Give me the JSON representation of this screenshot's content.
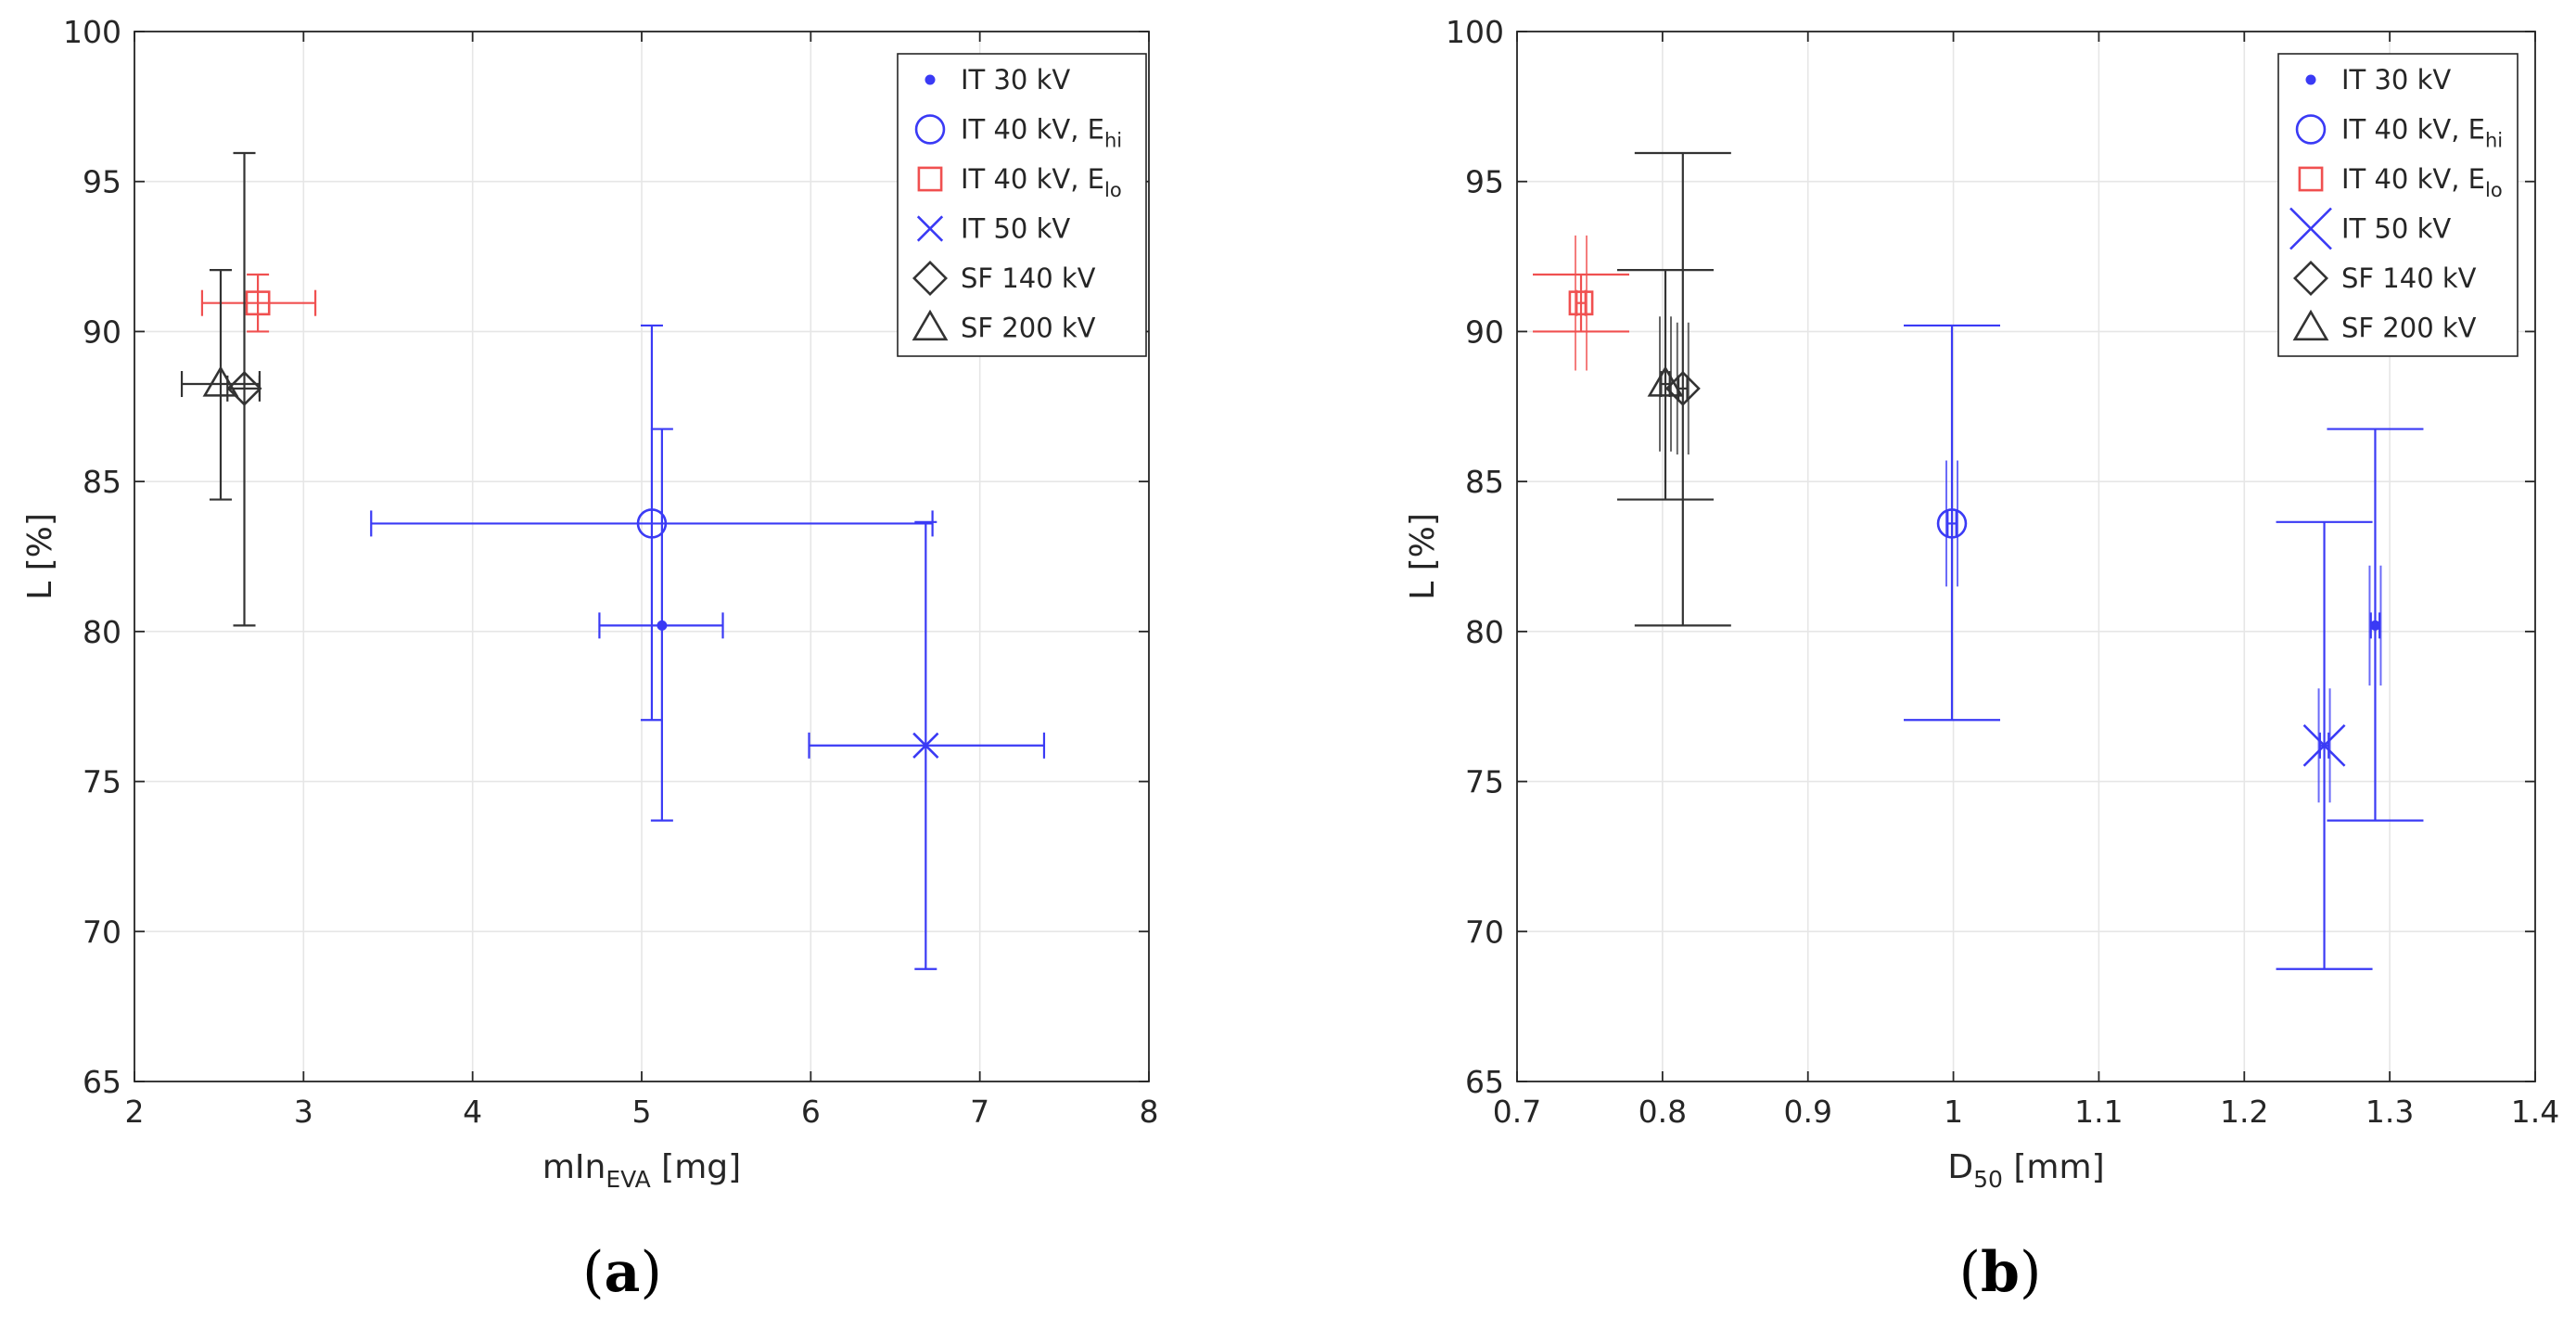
{
  "colors": {
    "blue": "#3a3af5",
    "red": "#f05050",
    "black": "#333333",
    "grid": "#e6e6e6",
    "axis": "#262626"
  },
  "chart_data": [
    {
      "panel": "a",
      "caption_open": "(",
      "caption_letter": "a",
      "caption_close": ")",
      "type": "scatter",
      "xlabel": {
        "base": "mIn",
        "sub": "EVA",
        "unit": " [mg]"
      },
      "ylabel": "L [%]",
      "xlim": [
        2,
        8
      ],
      "ylim": [
        65,
        100
      ],
      "xticks": [
        2,
        3,
        4,
        5,
        6,
        7,
        8
      ],
      "xtick_labels": [
        "2",
        "3",
        "4",
        "5",
        "6",
        "7",
        "8"
      ],
      "yticks": [
        65,
        70,
        75,
        80,
        85,
        90,
        95,
        100
      ],
      "ytick_labels": [
        "65",
        "70",
        "75",
        "80",
        "85",
        "90",
        "95",
        "100"
      ],
      "grid": true,
      "legend_position": "top-right",
      "series": [
        {
          "name": "IT 30 kV",
          "marker": "dot",
          "color": "blue",
          "x": 5.12,
          "y": 80.2,
          "xerr": [
            4.75,
            5.48
          ],
          "yerr": [
            73.7,
            86.75
          ]
        },
        {
          "name": "IT 40 kV, E",
          "name_sub": "hi",
          "marker": "circle",
          "color": "blue",
          "x": 5.06,
          "y": 83.6,
          "xerr": [
            3.4,
            6.72
          ],
          "yerr": [
            77.05,
            90.2
          ]
        },
        {
          "name": "IT 40 kV, E",
          "name_sub": "lo",
          "marker": "square",
          "color": "red",
          "x": 2.73,
          "y": 90.95,
          "xerr": [
            2.4,
            3.07
          ],
          "yerr": [
            90.0,
            91.9
          ]
        },
        {
          "name": "IT 50 kV",
          "marker": "cross",
          "color": "blue",
          "x": 6.68,
          "y": 76.2,
          "xerr": [
            5.99,
            7.38
          ],
          "yerr": [
            68.75,
            83.65
          ]
        },
        {
          "name": "SF 140 kV",
          "marker": "diamond",
          "color": "black",
          "x": 2.65,
          "y": 88.1,
          "xerr": [
            2.55,
            2.74
          ],
          "yerr": [
            80.2,
            95.95
          ]
        },
        {
          "name": "SF 200 kV",
          "marker": "triangle",
          "color": "black",
          "x": 2.51,
          "y": 88.25,
          "xerr": [
            2.28,
            2.74
          ],
          "yerr": [
            84.4,
            92.05
          ]
        }
      ]
    },
    {
      "panel": "b",
      "caption_open": "(",
      "caption_letter": "b",
      "caption_close": ")",
      "type": "scatter",
      "xlabel": {
        "base": "D",
        "sub": "50",
        "unit": " [mm]"
      },
      "ylabel": "L [%]",
      "xlim": [
        0.7,
        1.4
      ],
      "ylim": [
        65,
        100
      ],
      "xticks": [
        0.7,
        0.8,
        0.9,
        1.0,
        1.1,
        1.2,
        1.3,
        1.4
      ],
      "xtick_labels": [
        "0.7",
        "0.8",
        "0.9",
        "1",
        "1.1",
        "1.2",
        "1.3",
        "1.4"
      ],
      "yticks": [
        65,
        70,
        75,
        80,
        85,
        90,
        95,
        100
      ],
      "ytick_labels": [
        "65",
        "70",
        "75",
        "80",
        "85",
        "90",
        "95",
        "100"
      ],
      "grid": true,
      "legend_position": "top-right",
      "series": [
        {
          "name": "IT 30 kV",
          "marker": "dot",
          "color": "blue",
          "x": 1.29,
          "y": 80.2,
          "xerr": [
            1.287,
            1.293
          ],
          "yerr": [
            73.7,
            86.75
          ],
          "yerr2": [
            78.2,
            82.2
          ]
        },
        {
          "name": "IT 40 kV, E",
          "name_sub": "hi",
          "marker": "circle",
          "color": "blue",
          "x": 0.999,
          "y": 83.6,
          "xerr": [
            0.996,
            1.002
          ],
          "yerr": [
            77.05,
            90.2
          ],
          "yerr2": [
            81.5,
            85.7
          ]
        },
        {
          "name": "IT 40 kV, E",
          "name_sub": "lo",
          "marker": "square",
          "color": "red",
          "x": 0.744,
          "y": 90.95,
          "xerr": [
            0.741,
            0.747
          ],
          "yerr": [
            90.0,
            91.9
          ],
          "yerr2": [
            88.7,
            93.2
          ]
        },
        {
          "name": "IT 50 kV",
          "marker": "cross-large",
          "color": "blue",
          "x": 1.255,
          "y": 76.2,
          "xerr": [
            1.252,
            1.258
          ],
          "yerr": [
            68.75,
            83.65
          ],
          "yerr2": [
            74.3,
            78.1
          ]
        },
        {
          "name": "SF 140 kV",
          "marker": "diamond",
          "color": "black",
          "x": 0.814,
          "y": 88.1,
          "xerr": [
            0.811,
            0.817
          ],
          "yerr": [
            80.2,
            95.95
          ],
          "yerr2": [
            85.9,
            90.3
          ]
        },
        {
          "name": "SF 200 kV",
          "marker": "triangle",
          "color": "black",
          "x": 0.802,
          "y": 88.25,
          "xerr": [
            0.799,
            0.805
          ],
          "yerr": [
            84.4,
            92.05
          ],
          "yerr2": [
            86.0,
            90.5
          ]
        }
      ]
    }
  ]
}
